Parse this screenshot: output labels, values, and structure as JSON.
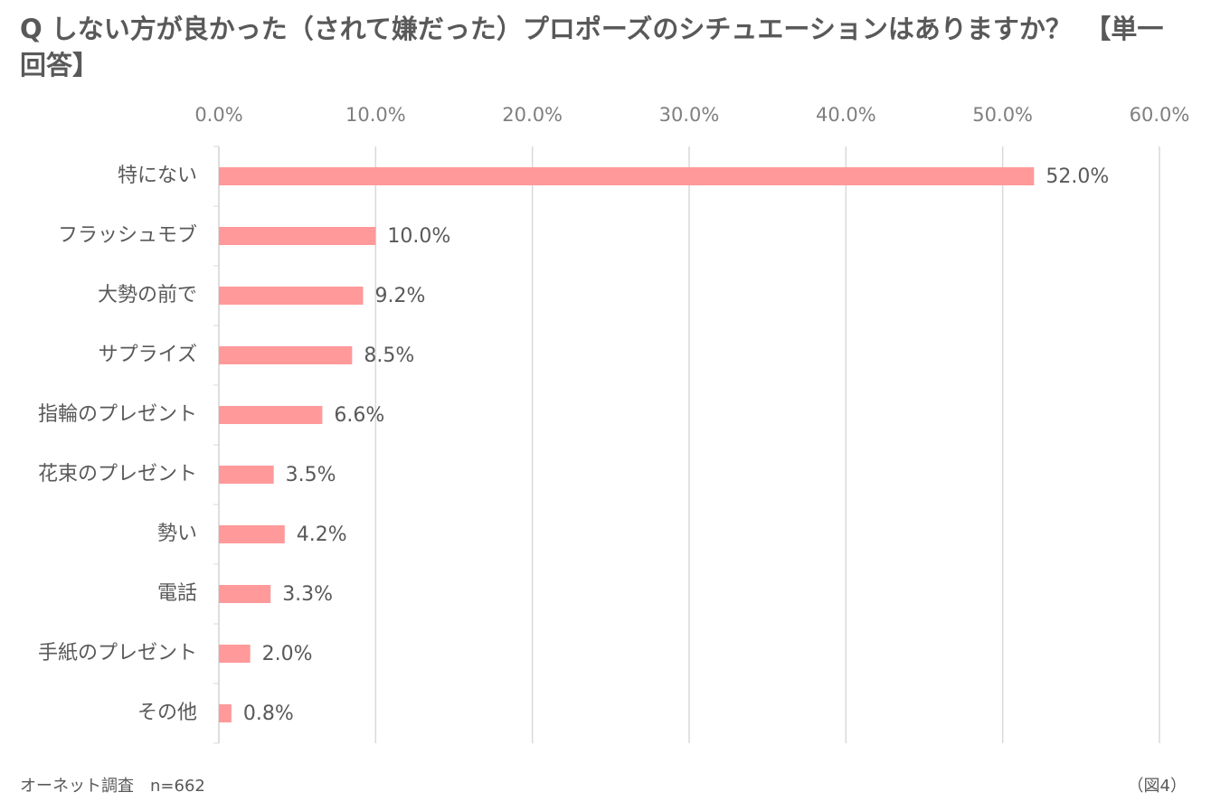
{
  "chart_data": {
    "type": "bar",
    "orientation": "horizontal",
    "title": "Q しない方が良かった（されて嫌だった）プロポーズのシチュエーションはありますか？　【単一回答】",
    "categories": [
      "特にない",
      "フラッシュモブ",
      "大勢の前で",
      "サプライズ",
      "指輪のプレゼント",
      "花束のプレゼント",
      "勢い",
      "電話",
      "手紙のプレゼント",
      "その他"
    ],
    "values": [
      52.0,
      10.0,
      9.2,
      8.5,
      6.6,
      3.5,
      4.2,
      3.3,
      2.0,
      0.8
    ],
    "value_labels": [
      "52.0%",
      "10.0%",
      "9.2%",
      "8.5%",
      "6.6%",
      "3.5%",
      "4.2%",
      "3.3%",
      "2.0%",
      "0.8%"
    ],
    "color": "#ff999a",
    "xlim": [
      0,
      60
    ],
    "xticks": [
      {
        "value": 0,
        "label": "0.0%"
      },
      {
        "value": 10,
        "label": "10.0%"
      },
      {
        "value": 20,
        "label": "20.0%"
      },
      {
        "value": 30,
        "label": "30.0%"
      },
      {
        "value": 40,
        "label": "40.0%"
      },
      {
        "value": 50,
        "label": "50.0%"
      },
      {
        "value": 60,
        "label": "60.0%"
      }
    ],
    "grid": true,
    "source": "オーネット調査　n=662",
    "figure_label": "（図4）"
  }
}
